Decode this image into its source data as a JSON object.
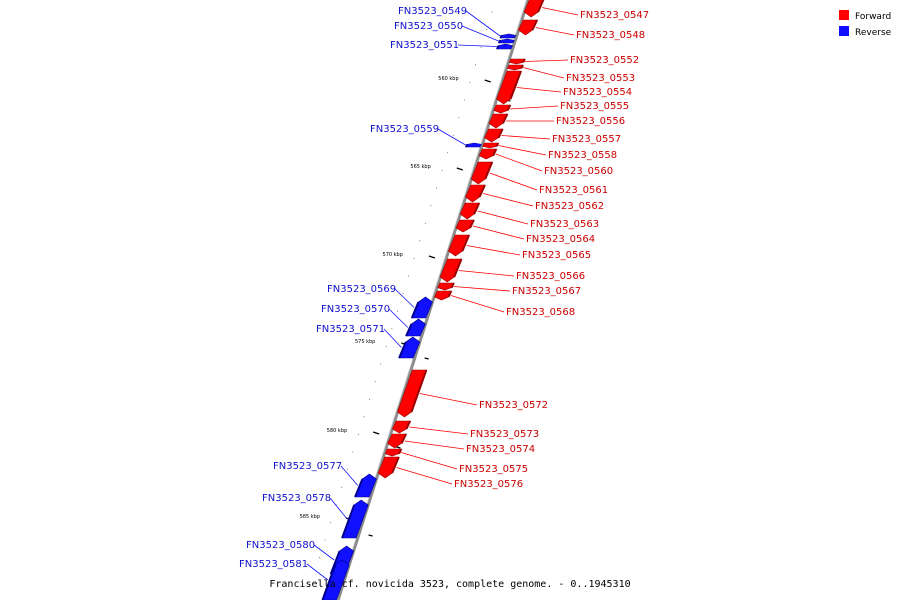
{
  "caption": "Francisella cf. novicida 3523, complete genome. - 0..1945310",
  "legend": [
    {
      "label": "Forward",
      "color": "#ff0000"
    },
    {
      "label": "Reverse",
      "color": "#1010ff"
    }
  ],
  "colors": {
    "forward": "#ff0000",
    "reverse": "#1010ff",
    "forward_dark": "#9a0000",
    "reverse_dark": "#000090",
    "backbone": "#8a8a8a"
  },
  "ticks": [
    "560 kbp",
    "565 kbp",
    "570 kbp",
    "575 kbp",
    "580 kbp",
    "585 kbp"
  ],
  "genes": [
    {
      "name": "FN3523_0547",
      "strand": "forward"
    },
    {
      "name": "FN3523_0548",
      "strand": "forward"
    },
    {
      "name": "FN3523_0549",
      "strand": "reverse"
    },
    {
      "name": "FN3523_0550",
      "strand": "reverse"
    },
    {
      "name": "FN3523_0551",
      "strand": "reverse"
    },
    {
      "name": "FN3523_0552",
      "strand": "forward"
    },
    {
      "name": "FN3523_0553",
      "strand": "forward"
    },
    {
      "name": "FN3523_0554",
      "strand": "forward"
    },
    {
      "name": "FN3523_0555",
      "strand": "forward"
    },
    {
      "name": "FN3523_0556",
      "strand": "forward"
    },
    {
      "name": "FN3523_0559",
      "strand": "reverse"
    },
    {
      "name": "FN3523_0557",
      "strand": "forward"
    },
    {
      "name": "FN3523_0558",
      "strand": "forward"
    },
    {
      "name": "FN3523_0560",
      "strand": "forward"
    },
    {
      "name": "FN3523_0561",
      "strand": "forward"
    },
    {
      "name": "FN3523_0562",
      "strand": "forward"
    },
    {
      "name": "FN3523_0563",
      "strand": "forward"
    },
    {
      "name": "FN3523_0564",
      "strand": "forward"
    },
    {
      "name": "FN3523_0565",
      "strand": "forward"
    },
    {
      "name": "FN3523_0566",
      "strand": "forward"
    },
    {
      "name": "FN3523_0567",
      "strand": "forward"
    },
    {
      "name": "FN3523_0568",
      "strand": "forward"
    },
    {
      "name": "FN3523_0569",
      "strand": "reverse"
    },
    {
      "name": "FN3523_0570",
      "strand": "reverse"
    },
    {
      "name": "FN3523_0571",
      "strand": "reverse"
    },
    {
      "name": "FN3523_0572",
      "strand": "forward"
    },
    {
      "name": "FN3523_0573",
      "strand": "forward"
    },
    {
      "name": "FN3523_0574",
      "strand": "forward"
    },
    {
      "name": "FN3523_0575",
      "strand": "forward"
    },
    {
      "name": "FN3523_0576",
      "strand": "forward"
    },
    {
      "name": "FN3523_0577",
      "strand": "reverse"
    },
    {
      "name": "FN3523_0578",
      "strand": "reverse"
    },
    {
      "name": "FN3523_0580",
      "strand": "reverse"
    },
    {
      "name": "FN3523_0581",
      "strand": "reverse"
    }
  ]
}
